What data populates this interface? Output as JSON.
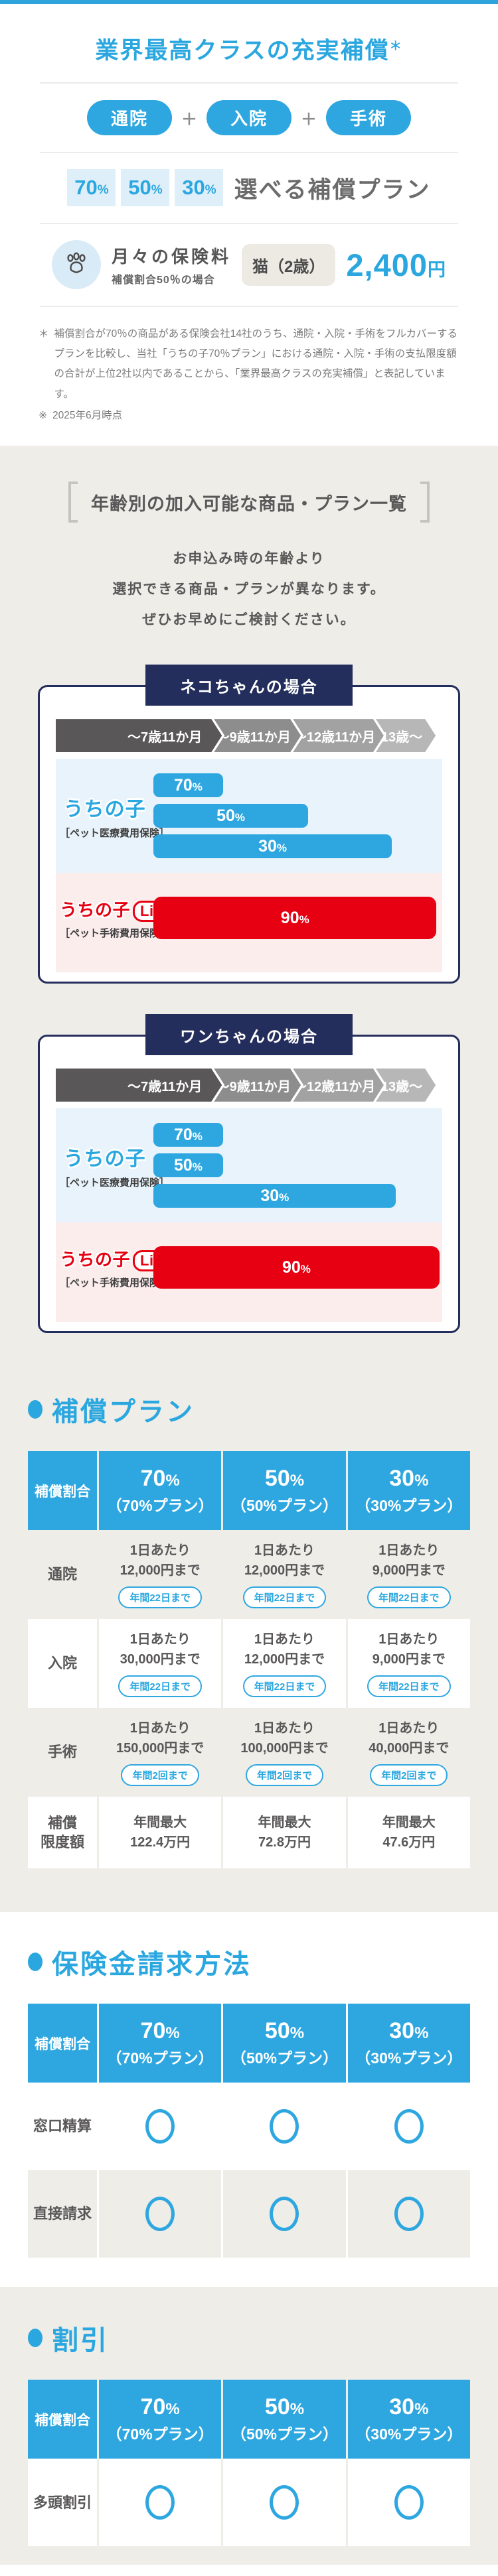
{
  "accent_color": "#2EA7E0",
  "navy_color": "#242E5C",
  "red_color": "#E60012",
  "hero": {
    "title": "業界最高クラスの充実補償",
    "title_asterisk": "＊",
    "coverage_types": [
      "通院",
      "入院",
      "手術"
    ],
    "plus": "＋",
    "plan_percents": [
      "70%",
      "50%",
      "30%"
    ],
    "plan_label": "選べる補償プラン",
    "premium": {
      "label": "月々の保険料",
      "sublabel": "補償割合50％の場合",
      "pet": "猫（2歳）",
      "price": "2,400",
      "unit": "円"
    },
    "notes": [
      {
        "marker": "＊",
        "text": "補償割合が70％の商品がある保険会社14社のうち、通院・入院・手術をフルカバーするプランを比較し、当社「うちの子70％プラン」における通院・入院・手術の支払限度額の合計が上位2社以内であることから、「業界最高クラスの充実補償」と表記しています。"
      },
      {
        "marker": "※",
        "text": "2025年6月時点"
      }
    ]
  },
  "age_section": {
    "heading": "年齢別の加入可能な商品・プラン一覧",
    "intro_lines": [
      "お申込み時の年齢より",
      "選択できる商品・プランが異なります。",
      "ぜひお早めにご検討ください。"
    ],
    "age_labels": [
      "〜7歳11か月",
      "〜9歳11か月",
      "〜12歳11か月",
      "13歳〜"
    ],
    "seg_widths": [
      43,
      22.5,
      23.5,
      15.5
    ],
    "seg_colors": [
      "#595757",
      "#8D8D8E",
      "#A2A2A3",
      "#B7B7B8"
    ],
    "products": {
      "medical": {
        "logo": "うちの子",
        "sub": "［ペット医療費用保険］"
      },
      "light": {
        "logo": "うちの子",
        "badge": "Light",
        "sub": "［ペット手術費用保険］"
      }
    },
    "cards": [
      {
        "title": "ネコちゃんの場合",
        "medical_bars": [
          {
            "label": "70%",
            "width": 24
          },
          {
            "label": "50%",
            "width": 53.5
          },
          {
            "label": "30%",
            "width": 82.5
          }
        ],
        "light_bar": {
          "label": "90%",
          "width": 98
        }
      },
      {
        "title": "ワンちゃんの場合",
        "medical_bars": [
          {
            "label": "70%",
            "width": 24
          },
          {
            "label": "50%",
            "width": 24
          },
          {
            "label": "30%",
            "width": 84
          }
        ],
        "light_bar": {
          "label": "90%",
          "width": 99
        }
      }
    ]
  },
  "plans_section": {
    "heading": "補償プラン",
    "table": {
      "header": {
        "label": "補償割合",
        "cols": [
          {
            "pct": "70%",
            "name": "（70%プラン）"
          },
          {
            "pct": "50%",
            "name": "（50%プラン）"
          },
          {
            "pct": "30%",
            "name": "（30%プラン）"
          }
        ]
      },
      "rows": [
        {
          "label": "通院",
          "bg": "beige",
          "cells": [
            {
              "line1": "1日あたり",
              "line2": "12,000円まで",
              "pill": "年間22日まで"
            },
            {
              "line1": "1日あたり",
              "line2": "12,000円まで",
              "pill": "年間22日まで"
            },
            {
              "line1": "1日あたり",
              "line2": "9,000円まで",
              "pill": "年間22日まで"
            }
          ]
        },
        {
          "label": "入院",
          "bg": "white",
          "cells": [
            {
              "line1": "1日あたり",
              "line2": "30,000円まで",
              "pill": "年間22日まで"
            },
            {
              "line1": "1日あたり",
              "line2": "12,000円まで",
              "pill": "年間22日まで"
            },
            {
              "line1": "1日あたり",
              "line2": "9,000円まで",
              "pill": "年間22日まで"
            }
          ]
        },
        {
          "label": "手術",
          "bg": "beige",
          "cells": [
            {
              "line1": "1日あたり",
              "line2": "150,000円まで",
              "pill": "年間2回まで"
            },
            {
              "line1": "1日あたり",
              "line2": "100,000円まで",
              "pill": "年間2回まで"
            },
            {
              "line1": "1日あたり",
              "line2": "40,000円まで",
              "pill": "年間2回まで"
            }
          ]
        },
        {
          "label": "補償限度額",
          "label_lines": [
            "補償",
            "限度額"
          ],
          "bg": "white",
          "cells": [
            {
              "line1": "年間最大",
              "line2": "122.4万円"
            },
            {
              "line1": "年間最大",
              "line2": "72.8万円"
            },
            {
              "line1": "年間最大",
              "line2": "47.6万円"
            }
          ]
        }
      ]
    }
  },
  "claims_section": {
    "heading": "保険金請求方法",
    "table": {
      "header": {
        "label": "補償割合",
        "cols": [
          {
            "pct": "70%",
            "name": "（70%プラン）"
          },
          {
            "pct": "50%",
            "name": "（50%プラン）"
          },
          {
            "pct": "30%",
            "name": "（30%プラン）"
          }
        ]
      },
      "rows": [
        {
          "label": "窓口精算",
          "bg": "white",
          "circles": [
            "circle-icon",
            "circle-icon",
            "circle-icon"
          ]
        },
        {
          "label": "直接請求",
          "bg": "beige",
          "circles": [
            "circle-icon",
            "circle-icon",
            "circle-icon"
          ]
        }
      ]
    }
  },
  "discount_section": {
    "heading": "割引",
    "table": {
      "header": {
        "label": "補償割合",
        "cols": [
          {
            "pct": "70%",
            "name": "（70%プラン）"
          },
          {
            "pct": "50%",
            "name": "（50%プラン）"
          },
          {
            "pct": "30%",
            "name": "（30%プラン）"
          }
        ]
      },
      "rows": [
        {
          "label": "多頭割引",
          "bg": "white",
          "circles": [
            "circle-icon",
            "circle-icon",
            "circle-icon"
          ]
        }
      ]
    }
  }
}
